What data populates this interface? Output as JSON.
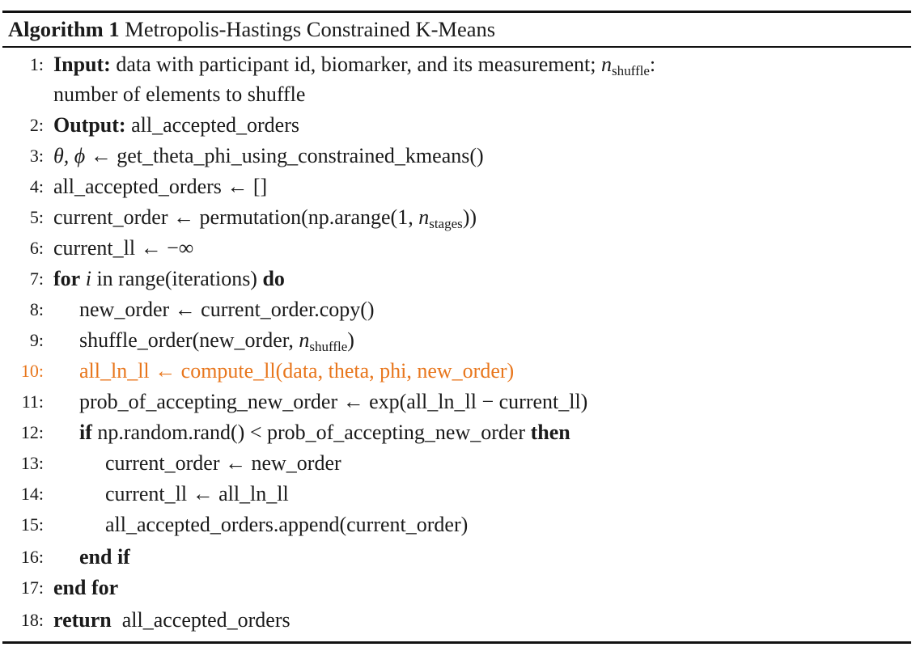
{
  "algorithm": {
    "label": "Algorithm 1",
    "title": "Metropolis-Hastings Constrained K-Means"
  },
  "lines": [
    {
      "num": "1:",
      "kw": "Input:",
      "text": "data with participant id, biomarker, and its measurement;",
      "var": "n",
      "sub": "shuffle",
      "tail": ":"
    },
    {
      "cont": "number of elements to shuffle"
    },
    {
      "num": "2:",
      "kw": "Output:",
      "text": "all_accepted_orders"
    },
    {
      "num": "3:",
      "sym": "θ, ϕ",
      "text": "← get_theta_phi_using_constrained_kmeans()"
    },
    {
      "num": "4:",
      "text": "all_accepted_orders ← []"
    },
    {
      "num": "5:",
      "text": "current_order ← permutation(np.arange(1,",
      "var": "n",
      "sub": "stages",
      "tail": "))"
    },
    {
      "num": "6:",
      "text": "current_ll ← −∞"
    },
    {
      "num": "7:",
      "kw": "for",
      "var_i": "i",
      "text": "in range(iterations)",
      "kw2": "do"
    },
    {
      "num": "8:",
      "text": "new_order ← current_order.copy()"
    },
    {
      "num": "9:",
      "text": "shuffle_order(new_order,",
      "var": "n",
      "sub": "shuffle",
      "tail": ")"
    },
    {
      "num": "10:",
      "text": "all_ln_ll ← compute_ll(data, theta, phi, new_order)",
      "color": "#e8761c"
    },
    {
      "num": "11:",
      "text": "prob_of_accepting_new_order ← exp(all_ln_ll − current_ll)"
    },
    {
      "num": "12:",
      "kw": "if",
      "text": "np.random.rand() < prob_of_accepting_new_order",
      "kw2": "then"
    },
    {
      "num": "13:",
      "text": "current_order ← new_order"
    },
    {
      "num": "14:",
      "text": "current_ll ← all_ln_ll"
    },
    {
      "num": "15:",
      "text": "all_accepted_orders.append(current_order)"
    },
    {
      "num": "16:",
      "kw": "end if"
    },
    {
      "num": "17:",
      "kw": "end for"
    },
    {
      "num": "18:",
      "kw": "return",
      "text": "all_accepted_orders"
    }
  ]
}
